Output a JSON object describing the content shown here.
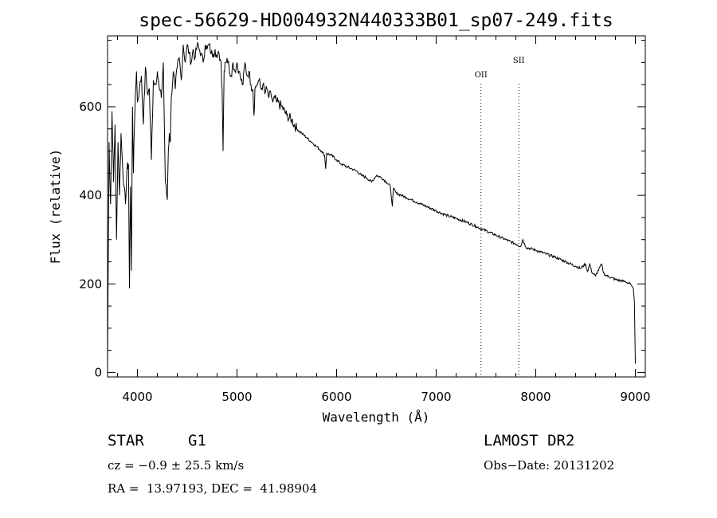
{
  "chart_data": {
    "type": "line",
    "title": "spec-56629-HD004932N440333B01_sp07-249.fits",
    "xlabel": "Wavelength (Å)",
    "ylabel": "Flux (relative)",
    "xlim": [
      3700,
      9100
    ],
    "ylim": [
      -10,
      760
    ],
    "x_ticks": [
      4000,
      5000,
      6000,
      7000,
      8000,
      9000
    ],
    "y_ticks": [
      0,
      200,
      400,
      600
    ],
    "grid": false,
    "line_markers": [
      {
        "label": "OII",
        "x": 7450
      },
      {
        "label": "SII",
        "x": 7830
      }
    ],
    "series": [
      {
        "x": [
          3700,
          3715,
          3730,
          3745,
          3760,
          3775,
          3790,
          3805,
          3820,
          3835,
          3850,
          3865,
          3880,
          3895,
          3910,
          3920,
          3930,
          3940,
          3950,
          3960,
          3970,
          3980,
          3990,
          4000,
          4020,
          4040,
          4060,
          4080,
          4100,
          4120,
          4140,
          4160,
          4180,
          4200,
          4220,
          4240,
          4260,
          4280,
          4300,
          4310,
          4320,
          4330,
          4340,
          4360,
          4380,
          4400,
          4420,
          4440,
          4460,
          4480,
          4500,
          4520,
          4540,
          4560,
          4580,
          4600,
          4620,
          4640,
          4660,
          4680,
          4700,
          4720,
          4740,
          4760,
          4780,
          4800,
          4820,
          4840,
          4850,
          4860,
          4870,
          4880,
          4900,
          4920,
          4940,
          4960,
          4980,
          5000,
          5020,
          5040,
          5060,
          5080,
          5100,
          5120,
          5140,
          5160,
          5170,
          5180,
          5200,
          5220,
          5240,
          5260,
          5280,
          5300,
          5320,
          5340,
          5360,
          5380,
          5400,
          5450,
          5500,
          5550,
          5600,
          5650,
          5700,
          5750,
          5800,
          5850,
          5880,
          5890,
          5900,
          5950,
          6000,
          6050,
          6100,
          6150,
          6200,
          6250,
          6300,
          6350,
          6400,
          6450,
          6500,
          6540,
          6560,
          6570,
          6600,
          6650,
          6700,
          6750,
          6800,
          6900,
          7000,
          7100,
          7200,
          7300,
          7400,
          7500,
          7600,
          7700,
          7800,
          7850,
          7870,
          7900,
          8000,
          8100,
          8200,
          8300,
          8400,
          8450,
          8498,
          8520,
          8542,
          8560,
          8600,
          8662,
          8680,
          8700,
          8800,
          8900,
          8950,
          8980,
          8990,
          9000
        ],
        "values": [
          10,
          520,
          380,
          590,
          430,
          560,
          300,
          520,
          400,
          540,
          470,
          420,
          380,
          460,
          470,
          190,
          420,
          230,
          600,
          450,
          560,
          630,
          680,
          610,
          640,
          670,
          560,
          690,
          630,
          640,
          480,
          660,
          650,
          680,
          640,
          620,
          700,
          430,
          390,
          500,
          540,
          520,
          620,
          680,
          640,
          690,
          710,
          660,
          740,
          700,
          740,
          720,
          700,
          730,
          710,
          740,
          730,
          720,
          700,
          740,
          730,
          740,
          720,
          720,
          730,
          710,
          720,
          700,
          640,
          500,
          680,
          700,
          710,
          690,
          670,
          700,
          680,
          700,
          680,
          660,
          650,
          700,
          670,
          680,
          650,
          640,
          580,
          640,
          650,
          660,
          640,
          650,
          630,
          640,
          620,
          630,
          610,
          620,
          610,
          600,
          580,
          570,
          550,
          540,
          530,
          520,
          510,
          500,
          490,
          460,
          495,
          490,
          480,
          470,
          465,
          460,
          455,
          445,
          440,
          430,
          445,
          440,
          430,
          420,
          375,
          415,
          405,
          400,
          395,
          390,
          385,
          375,
          365,
          355,
          348,
          340,
          330,
          320,
          310,
          300,
          290,
          285,
          300,
          283,
          276,
          268,
          260,
          250,
          240,
          235,
          245,
          228,
          245,
          228,
          218,
          245,
          225,
          220,
          210,
          205,
          200,
          190,
          160,
          20
        ]
      }
    ]
  },
  "info": {
    "object_type": "STAR",
    "subclass": "G1",
    "survey": "LAMOST DR2",
    "cz": "cz = −0.9 ± 25.5 km/s",
    "obs_date": "Obs−Date: 20131202",
    "coords": "RA =  13.97193, DEC =  41.98904"
  }
}
